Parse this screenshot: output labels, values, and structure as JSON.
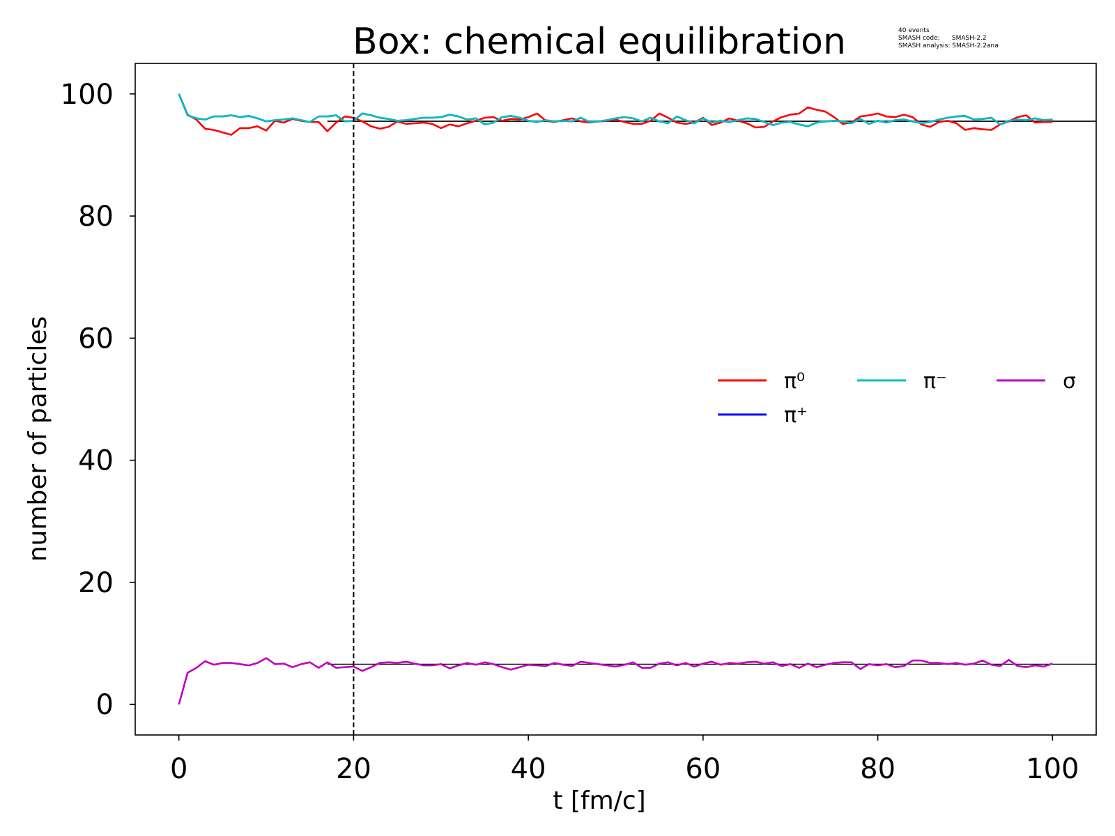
{
  "chart_data": {
    "type": "line",
    "title": "Box: chemical equilibration",
    "info_lines": [
      "40 events",
      "SMASH code:      SMASH-2.2",
      "SMASH analysis: SMASH-2.2ana"
    ],
    "xlabel": "t [fm/c]",
    "ylabel": "number of particles",
    "xlim": [
      -5,
      105
    ],
    "ylim": [
      -5,
      105
    ],
    "xticks": [
      0,
      20,
      40,
      60,
      80,
      100
    ],
    "yticks": [
      0,
      20,
      40,
      60,
      80,
      100
    ],
    "grid": false,
    "legend_position": "center-right",
    "vline": {
      "x": 20,
      "style": "dashed",
      "color": "#000000"
    },
    "reference_lines": [
      {
        "y": 95.6,
        "x_start": 17,
        "x_end": 105,
        "color": "#7f7f7f"
      },
      {
        "y": 95.5,
        "x_start": 17,
        "x_end": 105,
        "color": "#000000"
      },
      {
        "y": 6.6,
        "x_start": 17,
        "x_end": 105,
        "color": "#000000"
      }
    ],
    "series": [
      {
        "name": "π⁰",
        "color": "#ff0000",
        "x_start": 0,
        "x_step": 1,
        "values": [
          100,
          96.6,
          95.8,
          94.3,
          94.1,
          93.7,
          93.3,
          94.4,
          94.4,
          94.7,
          94.0,
          95.6,
          95.3,
          95.9,
          95.6,
          95.4,
          95.4,
          93.9,
          95.3,
          96.3,
          96.1,
          95.5,
          94.7,
          94.3,
          94.6,
          95.5,
          95.1,
          95.2,
          95.3,
          95.1,
          94.4,
          95.0,
          94.7,
          95.2,
          95.6,
          96.1,
          96.2,
          95.6,
          95.9,
          95.8,
          96.2,
          96.8,
          95.6,
          95.4,
          95.7,
          96.0,
          95.5,
          95.3,
          95.5,
          95.6,
          95.8,
          95.4,
          95.1,
          95.1,
          95.6,
          96.8,
          96.1,
          95.3,
          95.1,
          95.3,
          96.1,
          94.9,
          95.3,
          96.0,
          95.6,
          95.2,
          94.5,
          94.6,
          95.5,
          96.2,
          96.6,
          96.8,
          97.8,
          97.4,
          97.1,
          96.2,
          95.1,
          95.3,
          96.3,
          96.5,
          96.8,
          96.3,
          96.2,
          96.6,
          96.2,
          95.0,
          94.6,
          95.4,
          95.6,
          95.2,
          94.1,
          94.4,
          94.2,
          94.1,
          95.0,
          95.5,
          96.2,
          96.5,
          95.3,
          95.4,
          95.4
        ]
      },
      {
        "name": "π⁺",
        "color": "#0000ff",
        "x_start": 0,
        "x_step": 1,
        "values": [
          100,
          96.5,
          96.0,
          95.8,
          96.3,
          96.3,
          96.5,
          96.2,
          96.4,
          96.0,
          95.5,
          95.7,
          95.8,
          96.0,
          95.7,
          95.4,
          96.3,
          96.3,
          96.5,
          95.5,
          95.6,
          96.8,
          96.5,
          96.1,
          95.9,
          95.6,
          95.7,
          95.9,
          96.1,
          96.1,
          96.2,
          96.6,
          96.3,
          95.8,
          96.0,
          95.0,
          95.3,
          96.2,
          96.4,
          96.1,
          95.6,
          95.4,
          95.7,
          95.5,
          95.6,
          95.5,
          96.1,
          95.4,
          95.5,
          95.7,
          96.0,
          96.2,
          96.0,
          95.5,
          96.1,
          95.5,
          95.2,
          96.3,
          95.7,
          95.2,
          96.0,
          95.3,
          95.6,
          95.4,
          95.7,
          96.0,
          95.9,
          95.4,
          94.9,
          95.3,
          95.4,
          95.0,
          94.7,
          95.3,
          95.5,
          95.6,
          95.5,
          95.2,
          95.9,
          95.1,
          95.6,
          95.3,
          95.7,
          95.8,
          95.5,
          95.2,
          95.4,
          95.8,
          96.1,
          96.3,
          96.4,
          95.8,
          95.9,
          96.1,
          95.0,
          95.6,
          95.8,
          95.7,
          96.0,
          95.7,
          95.8
        ]
      },
      {
        "name": "π⁻",
        "color": "#00bfbf",
        "x_start": 0,
        "x_step": 1,
        "values": [
          100,
          96.5,
          96.0,
          95.8,
          96.3,
          96.3,
          96.5,
          96.2,
          96.4,
          96.0,
          95.5,
          95.7,
          95.8,
          96.0,
          95.7,
          95.4,
          96.3,
          96.3,
          96.5,
          95.5,
          95.6,
          96.8,
          96.5,
          96.1,
          95.9,
          95.6,
          95.7,
          95.9,
          96.1,
          96.1,
          96.2,
          96.6,
          96.3,
          95.8,
          96.0,
          95.0,
          95.3,
          96.2,
          96.4,
          96.1,
          95.6,
          95.4,
          95.7,
          95.5,
          95.6,
          95.5,
          96.1,
          95.4,
          95.5,
          95.7,
          96.0,
          96.2,
          96.0,
          95.5,
          96.1,
          95.5,
          95.2,
          96.3,
          95.7,
          95.2,
          96.0,
          95.3,
          95.6,
          95.4,
          95.7,
          96.0,
          95.9,
          95.4,
          94.9,
          95.3,
          95.4,
          95.0,
          94.7,
          95.3,
          95.5,
          95.6,
          95.5,
          95.2,
          95.9,
          95.1,
          95.6,
          95.3,
          95.7,
          95.8,
          95.5,
          95.2,
          95.4,
          95.8,
          96.1,
          96.3,
          96.4,
          95.8,
          95.9,
          96.1,
          95.0,
          95.6,
          95.8,
          95.7,
          96.0,
          95.7,
          95.8
        ]
      },
      {
        "name": "σ",
        "color": "#bf00bf",
        "x_start": 0,
        "x_step": 1,
        "values": [
          0,
          5.2,
          6.0,
          7.1,
          6.5,
          6.8,
          6.8,
          6.6,
          6.4,
          6.8,
          7.6,
          6.6,
          6.7,
          6.1,
          6.6,
          6.9,
          6.0,
          6.9,
          6.0,
          6.1,
          6.2,
          5.5,
          6.1,
          6.8,
          6.9,
          6.8,
          7.0,
          6.7,
          6.4,
          6.4,
          6.6,
          5.9,
          6.4,
          6.8,
          6.5,
          6.9,
          6.6,
          6.1,
          5.7,
          6.1,
          6.5,
          6.4,
          6.3,
          6.8,
          6.5,
          6.3,
          7.0,
          6.8,
          6.6,
          6.4,
          6.2,
          6.5,
          6.9,
          6.0,
          6.0,
          6.7,
          6.9,
          6.4,
          6.8,
          6.2,
          6.7,
          7.0,
          6.5,
          6.8,
          6.7,
          6.9,
          7.0,
          6.7,
          6.9,
          6.3,
          6.6,
          6.0,
          6.7,
          6.1,
          6.5,
          6.8,
          6.9,
          6.9,
          5.8,
          6.6,
          6.4,
          6.6,
          6.1,
          6.3,
          7.2,
          7.2,
          6.8,
          6.8,
          6.6,
          6.8,
          6.5,
          6.7,
          7.2,
          6.5,
          6.3,
          7.3,
          6.3,
          6.1,
          6.4,
          6.2,
          6.7
        ]
      }
    ]
  }
}
